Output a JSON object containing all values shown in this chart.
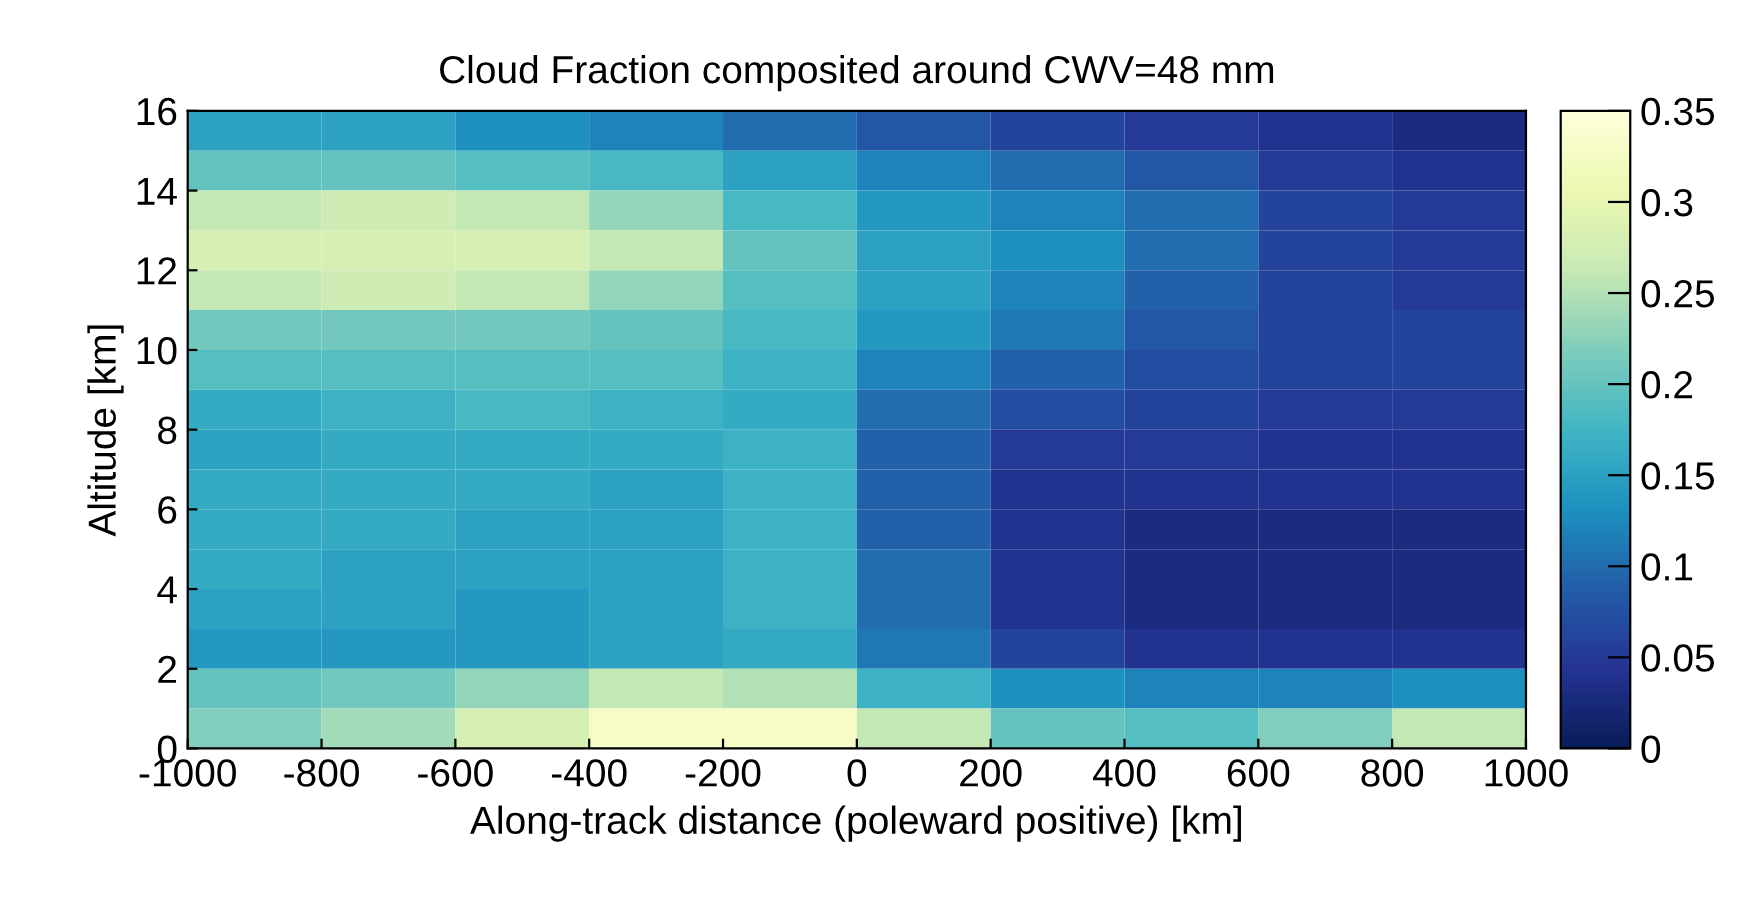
{
  "chart_data": {
    "type": "heatmap",
    "title": "Cloud Fraction composited around CWV=48 mm",
    "xlabel": "Along-track distance (poleward positive) [km]",
    "ylabel": "Altitude [km]",
    "x": [
      -900,
      -700,
      -500,
      -300,
      -100,
      100,
      300,
      500,
      700,
      900
    ],
    "y": [
      15.5,
      14.5,
      13.5,
      12.5,
      11.5,
      10.5,
      9.5,
      8.5,
      7.5,
      6.5,
      5.5,
      4.5,
      3.5,
      2.5,
      1.5,
      0.5
    ],
    "cells": [
      [
        0.15,
        0.15,
        0.13,
        0.12,
        0.1,
        0.08,
        0.06,
        0.05,
        0.04,
        0.03
      ],
      [
        0.2,
        0.2,
        0.19,
        0.18,
        0.15,
        0.12,
        0.1,
        0.08,
        0.05,
        0.04
      ],
      [
        0.26,
        0.27,
        0.26,
        0.23,
        0.18,
        0.14,
        0.12,
        0.1,
        0.06,
        0.05
      ],
      [
        0.28,
        0.28,
        0.28,
        0.26,
        0.2,
        0.15,
        0.13,
        0.1,
        0.06,
        0.05
      ],
      [
        0.26,
        0.27,
        0.26,
        0.23,
        0.19,
        0.15,
        0.12,
        0.09,
        0.06,
        0.05
      ],
      [
        0.21,
        0.21,
        0.21,
        0.2,
        0.18,
        0.14,
        0.11,
        0.08,
        0.06,
        0.06
      ],
      [
        0.19,
        0.19,
        0.19,
        0.19,
        0.17,
        0.12,
        0.09,
        0.07,
        0.06,
        0.06
      ],
      [
        0.16,
        0.17,
        0.18,
        0.17,
        0.16,
        0.1,
        0.07,
        0.06,
        0.05,
        0.05
      ],
      [
        0.15,
        0.16,
        0.16,
        0.16,
        0.17,
        0.09,
        0.05,
        0.05,
        0.04,
        0.04
      ],
      [
        0.16,
        0.16,
        0.16,
        0.15,
        0.17,
        0.09,
        0.04,
        0.04,
        0.04,
        0.04
      ],
      [
        0.16,
        0.16,
        0.15,
        0.15,
        0.17,
        0.09,
        0.04,
        0.03,
        0.03,
        0.03
      ],
      [
        0.16,
        0.15,
        0.15,
        0.15,
        0.17,
        0.1,
        0.04,
        0.03,
        0.03,
        0.03
      ],
      [
        0.15,
        0.15,
        0.14,
        0.15,
        0.17,
        0.1,
        0.04,
        0.03,
        0.03,
        0.03
      ],
      [
        0.14,
        0.14,
        0.14,
        0.15,
        0.16,
        0.11,
        0.06,
        0.04,
        0.04,
        0.04
      ],
      [
        0.2,
        0.21,
        0.23,
        0.26,
        0.25,
        0.17,
        0.13,
        0.12,
        0.12,
        0.13
      ],
      [
        0.22,
        0.24,
        0.28,
        0.33,
        0.33,
        0.26,
        0.2,
        0.19,
        0.22,
        0.26
      ]
    ],
    "xlim": [
      -1000,
      1000
    ],
    "xticks": [
      -1000,
      -800,
      -600,
      -400,
      -200,
      0,
      200,
      400,
      600,
      800,
      1000
    ],
    "ylim": [
      0,
      16
    ],
    "yticks": [
      0,
      2,
      4,
      6,
      8,
      10,
      12,
      14,
      16
    ],
    "clim": [
      0,
      0.35
    ],
    "cticks": [
      0,
      0.05,
      0.1,
      0.15,
      0.2,
      0.25,
      0.3,
      0.35
    ]
  }
}
